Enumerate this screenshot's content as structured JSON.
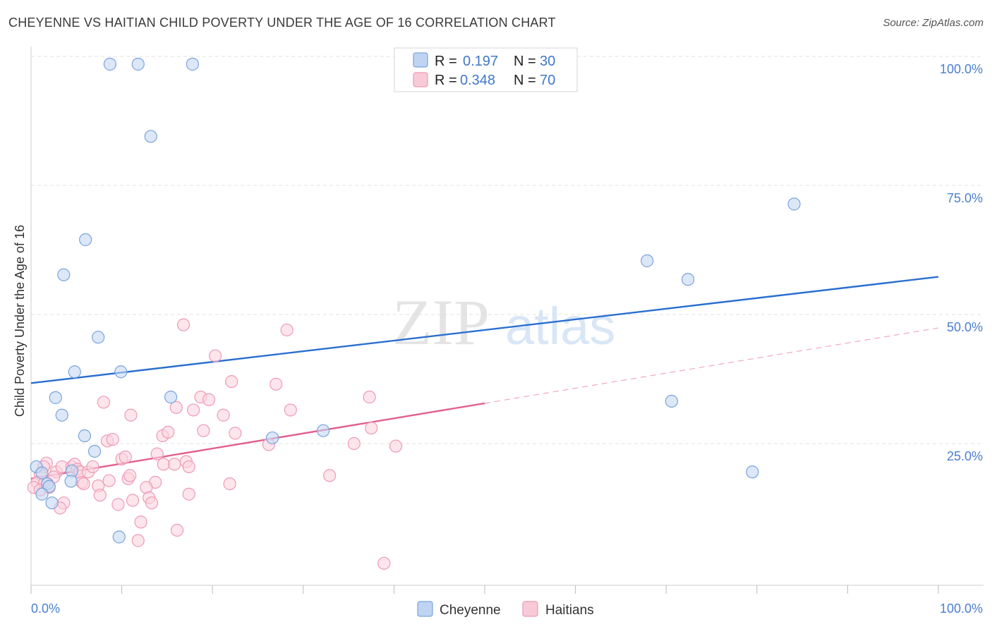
{
  "title": "CHEYENNE VS HAITIAN CHILD POVERTY UNDER THE AGE OF 16 CORRELATION CHART",
  "source": "Source: ZipAtlas.com",
  "watermark": {
    "zip": "ZIP",
    "atlas": "atlas"
  },
  "legend": {
    "r_label": "R =",
    "n_label": "N =",
    "rows": [
      {
        "r": "0.197",
        "n": "30",
        "color": "#a9c6ee"
      },
      {
        "r": "0.348",
        "n": "70",
        "color": "#f5b8cb"
      }
    ]
  },
  "bottom_legend": [
    "Cheyenne",
    "Haitians"
  ],
  "colors": {
    "cheyenne_fill": "#c5d9f4",
    "cheyenne_stroke": "#7aa3dd",
    "cheyenne_line": "#2a6fd0",
    "haitian_fill": "#fbd3df",
    "haitian_stroke": "#ee9ab5",
    "haitian_line": "#e2608f",
    "tick_text": "#4a7fd0",
    "grid": "#e0e0e0"
  },
  "chart_data": {
    "type": "scatter",
    "title": "CHEYENNE VS HAITIAN CHILD POVERTY UNDER THE AGE OF 16 CORRELATION CHART",
    "xlabel": "",
    "ylabel": "Child Poverty Under the Age of 16",
    "xlim": [
      0,
      100
    ],
    "ylim": [
      0,
      100
    ],
    "x_tick_labels": [
      "0.0%",
      "100.0%"
    ],
    "y_tick_labels": [
      "25.0%",
      "50.0%",
      "75.0%",
      "100.0%"
    ],
    "y_ticks": [
      25,
      50,
      75,
      100
    ],
    "grid": true,
    "legend_placement": "top-center",
    "series": [
      {
        "name": "Cheyenne",
        "r": 0.197,
        "n": 30,
        "points": [
          [
            8.7,
            98.5
          ],
          [
            11.8,
            98.5
          ],
          [
            17.8,
            98.5
          ],
          [
            13.2,
            84.5
          ],
          [
            84.1,
            71.4
          ],
          [
            6.0,
            64.5
          ],
          [
            3.6,
            57.7
          ],
          [
            67.9,
            60.4
          ],
          [
            72.4,
            56.8
          ],
          [
            7.4,
            45.6
          ],
          [
            4.8,
            38.9
          ],
          [
            9.9,
            38.9
          ],
          [
            2.7,
            33.9
          ],
          [
            15.4,
            34.0
          ],
          [
            3.4,
            30.5
          ],
          [
            70.6,
            33.2
          ],
          [
            5.9,
            26.5
          ],
          [
            7.0,
            23.5
          ],
          [
            26.6,
            26.1
          ],
          [
            32.2,
            27.5
          ],
          [
            0.6,
            20.5
          ],
          [
            1.2,
            19.3
          ],
          [
            4.5,
            19.7
          ],
          [
            79.5,
            19.5
          ],
          [
            1.8,
            17.2
          ],
          [
            2.0,
            16.7
          ],
          [
            4.4,
            17.7
          ],
          [
            1.2,
            15.2
          ],
          [
            2.3,
            13.5
          ],
          [
            9.7,
            6.9
          ]
        ],
        "trend": {
          "x": [
            0,
            100
          ],
          "y": [
            36.7,
            57.3
          ]
        }
      },
      {
        "name": "Haitians",
        "r": 0.348,
        "n": 70,
        "points": [
          [
            16.8,
            48.0
          ],
          [
            28.2,
            47.0
          ],
          [
            20.3,
            42.0
          ],
          [
            22.1,
            37.0
          ],
          [
            27.0,
            36.5
          ],
          [
            8.0,
            33.0
          ],
          [
            18.7,
            34.0
          ],
          [
            16.0,
            32.0
          ],
          [
            19.6,
            33.5
          ],
          [
            37.3,
            34.0
          ],
          [
            28.6,
            31.5
          ],
          [
            17.9,
            31.5
          ],
          [
            11.0,
            30.5
          ],
          [
            21.2,
            30.5
          ],
          [
            37.5,
            28.0
          ],
          [
            8.4,
            25.5
          ],
          [
            9.0,
            25.8
          ],
          [
            14.5,
            26.5
          ],
          [
            15.1,
            27.2
          ],
          [
            19.0,
            27.5
          ],
          [
            22.5,
            27.0
          ],
          [
            26.2,
            24.8
          ],
          [
            35.6,
            25.0
          ],
          [
            40.2,
            24.5
          ],
          [
            10.0,
            22.0
          ],
          [
            10.4,
            22.4
          ],
          [
            13.9,
            23.0
          ],
          [
            14.6,
            21.0
          ],
          [
            15.8,
            21.0
          ],
          [
            17.1,
            21.5
          ],
          [
            17.4,
            20.5
          ],
          [
            1.7,
            21.2
          ],
          [
            1.4,
            20.5
          ],
          [
            2.8,
            19.5
          ],
          [
            3.4,
            20.5
          ],
          [
            4.5,
            20.5
          ],
          [
            4.8,
            21.0
          ],
          [
            5.1,
            20.0
          ],
          [
            5.4,
            19.5
          ],
          [
            6.3,
            19.5
          ],
          [
            6.8,
            20.5
          ],
          [
            2.5,
            18.5
          ],
          [
            1.0,
            19.0
          ],
          [
            0.7,
            17.5
          ],
          [
            0.3,
            16.5
          ],
          [
            1.5,
            17.5
          ],
          [
            2.0,
            16.5
          ],
          [
            5.6,
            17.5
          ],
          [
            5.8,
            17.2
          ],
          [
            7.4,
            16.8
          ],
          [
            8.6,
            17.8
          ],
          [
            10.7,
            18.2
          ],
          [
            10.9,
            18.8
          ],
          [
            13.7,
            17.5
          ],
          [
            12.7,
            16.5
          ],
          [
            21.9,
            17.2
          ],
          [
            32.9,
            18.8
          ],
          [
            7.6,
            15.0
          ],
          [
            13.0,
            14.5
          ],
          [
            11.2,
            14.0
          ],
          [
            13.3,
            13.5
          ],
          [
            17.4,
            15.2
          ],
          [
            9.6,
            13.2
          ],
          [
            3.6,
            13.5
          ],
          [
            3.2,
            12.5
          ],
          [
            12.1,
            9.8
          ],
          [
            16.1,
            8.2
          ],
          [
            11.8,
            6.2
          ],
          [
            38.9,
            1.8
          ],
          [
            1.0,
            16.0
          ]
        ],
        "trend": {
          "x": [
            0,
            50
          ],
          "y": [
            18.2,
            32.8
          ]
        },
        "trend_extension": {
          "x": [
            50,
            100
          ],
          "y": [
            32.8,
            47.4
          ]
        }
      }
    ]
  }
}
